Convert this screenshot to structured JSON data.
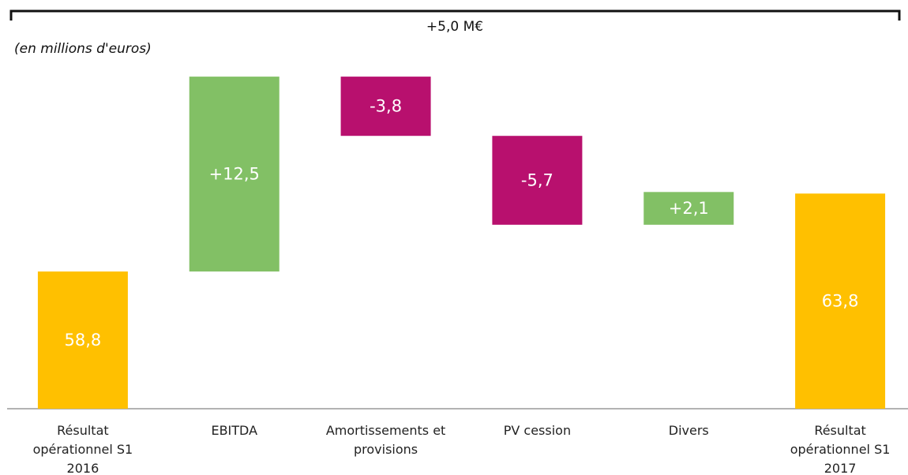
{
  "chart_data": {
    "type": "waterfall",
    "subtitle": "(en millions d'euros)",
    "annotation": "+5,0 M€",
    "categories": [
      "Résultat opérationnel S1 2016",
      "EBITDA",
      "Amortissements et provisions",
      "PV cession",
      "Divers",
      "Résultat opérationnel S1 2017"
    ],
    "values": [
      58.8,
      12.5,
      -3.8,
      -5.7,
      2.1,
      63.8
    ],
    "value_labels": [
      "58,8",
      "+12,5",
      "-3,8",
      "-5,7",
      "+2,1",
      "63,8"
    ],
    "measures": [
      "total",
      "relative",
      "relative",
      "relative",
      "relative",
      "total"
    ],
    "colors": {
      "total": "#ffc000",
      "increase": "#82c065",
      "decrease": "#b8106e"
    },
    "ylim": [
      50,
      75
    ]
  }
}
